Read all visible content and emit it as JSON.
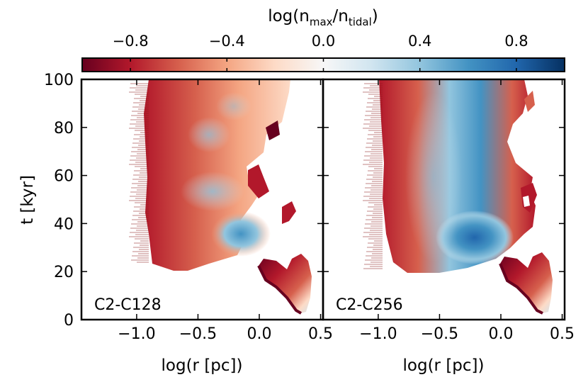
{
  "chart_data": {
    "type": "heatmap",
    "colorbar": {
      "label_main": "log(n",
      "label_sub1": "max",
      "label_mid": "/n",
      "label_sub2": "tidal",
      "label_end": ")",
      "range": [
        -1.0,
        1.0
      ],
      "ticks": [
        -0.8,
        -0.4,
        0.0,
        0.4,
        0.8
      ],
      "tick_labels": [
        "−0.8",
        "−0.4",
        "0.0",
        "0.4",
        "0.8"
      ],
      "colormap": "RdBu",
      "stops": [
        "#67001f",
        "#b2182b",
        "#d6604d",
        "#f4a582",
        "#fddbc7",
        "#f7f7f7",
        "#d1e5f0",
        "#92c5de",
        "#4393c3",
        "#2166ac",
        "#053061"
      ]
    },
    "y_axis": {
      "label": "t [kyr]",
      "range": [
        0,
        100
      ],
      "ticks": [
        0,
        20,
        40,
        60,
        80,
        100
      ],
      "tick_labels": [
        "0",
        "20",
        "40",
        "60",
        "80",
        "100"
      ]
    },
    "x_axis": {
      "label": "log(r [pc])",
      "range": [
        -1.45,
        0.52
      ],
      "ticks": [
        -1.0,
        -0.5,
        0.0,
        0.5
      ],
      "tick_labels": [
        "−1.0",
        "−0.5",
        "0.0",
        "0.5"
      ]
    },
    "panels": [
      {
        "label": "C2-C128",
        "description_values": {
          "inner_edge_log_r": -0.85,
          "dense_blue_peak": 0.5,
          "blue_region_log_r": [
            -0.3,
            0.0
          ],
          "blue_region_t": [
            28,
            45
          ]
        }
      },
      {
        "label": "C2-C256",
        "description_values": {
          "inner_edge_log_r": -0.9,
          "dense_blue_peak": 0.85,
          "blue_region_log_r": [
            -0.55,
            0.05
          ],
          "blue_region_t": [
            22,
            95
          ]
        }
      }
    ]
  }
}
